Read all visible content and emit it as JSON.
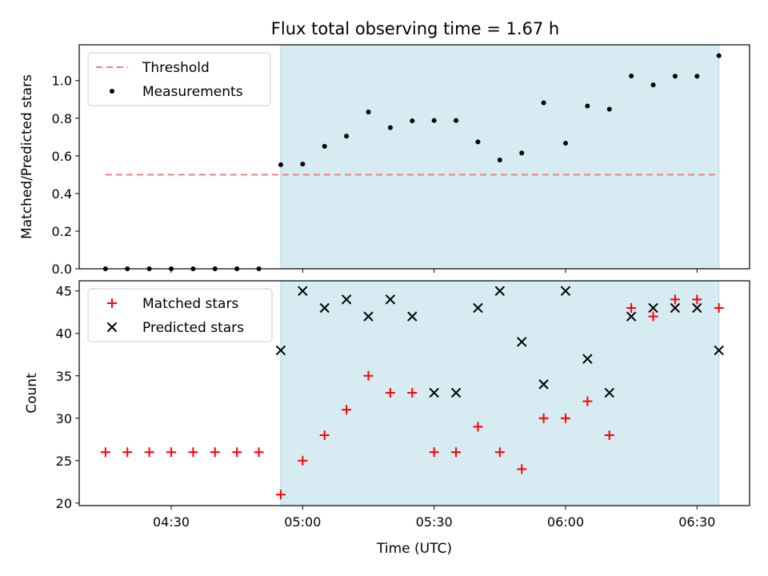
{
  "title": "Flux total observing time = 1.67 h",
  "colors": {
    "threshold": "#f08080",
    "measurement": "#000000",
    "matched": "#ff0000",
    "predicted": "#000000",
    "observing_span": "#add8e6"
  },
  "chart_data": [
    {
      "type": "scatter",
      "ylabel": "Matched/Predicted stars",
      "ylim": [
        0,
        1.19
      ],
      "yticks": [
        "0.0",
        "0.2",
        "0.4",
        "0.6",
        "0.8",
        "1.0"
      ],
      "legend": {
        "placement": "upper-left",
        "entries": [
          "Threshold",
          "Measurements"
        ]
      },
      "shaded_span": [
        "04:55",
        "06:35"
      ],
      "threshold": {
        "name": "Threshold",
        "value": 0.5,
        "x_range": [
          "04:15",
          "06:35"
        ],
        "style": "dashed"
      },
      "series": [
        {
          "name": "Measurements",
          "marker": "dot",
          "x": [
            "04:15",
            "04:20",
            "04:25",
            "04:30",
            "04:35",
            "04:40",
            "04:45",
            "04:50",
            "04:55",
            "05:00",
            "05:05",
            "05:10",
            "05:15",
            "05:20",
            "05:25",
            "05:30",
            "05:35",
            "05:40",
            "05:45",
            "05:50",
            "05:55",
            "06:00",
            "06:05",
            "06:10",
            "06:15",
            "06:20",
            "06:25",
            "06:30",
            "06:35"
          ],
          "y": [
            0,
            0,
            0,
            0,
            0,
            0,
            0,
            0,
            0.553,
            0.556,
            0.651,
            0.705,
            0.833,
            0.75,
            0.786,
            0.788,
            0.788,
            0.674,
            0.578,
            0.615,
            0.882,
            0.667,
            0.865,
            0.848,
            1.024,
            0.977,
            1.023,
            1.023,
            1.132
          ]
        }
      ]
    },
    {
      "type": "scatter",
      "xlabel": "Time (UTC)",
      "ylabel": "Count",
      "xlim": [
        "04:09",
        "06:42"
      ],
      "ylim": [
        19.7,
        46.2
      ],
      "xticks": [
        "04:30",
        "05:00",
        "05:30",
        "06:00",
        "06:30"
      ],
      "yticks": [
        "20",
        "25",
        "30",
        "35",
        "40",
        "45"
      ],
      "legend": {
        "placement": "upper-left",
        "entries": [
          "Matched stars",
          "Predicted stars"
        ]
      },
      "shaded_span": [
        "04:55",
        "06:35"
      ],
      "series": [
        {
          "name": "Matched stars",
          "marker": "plus",
          "x": [
            "04:15",
            "04:20",
            "04:25",
            "04:30",
            "04:35",
            "04:40",
            "04:45",
            "04:50",
            "04:55",
            "05:00",
            "05:05",
            "05:10",
            "05:15",
            "05:20",
            "05:25",
            "05:30",
            "05:35",
            "05:40",
            "05:45",
            "05:50",
            "05:55",
            "06:00",
            "06:05",
            "06:10",
            "06:15",
            "06:20",
            "06:25",
            "06:30",
            "06:35"
          ],
          "y": [
            26,
            26,
            26,
            26,
            26,
            26,
            26,
            26,
            21,
            25,
            28,
            31,
            35,
            33,
            33,
            26,
            26,
            29,
            26,
            24,
            30,
            30,
            32,
            28,
            43,
            42,
            44,
            44,
            43
          ]
        },
        {
          "name": "Predicted stars",
          "marker": "x",
          "x": [
            "04:55",
            "05:00",
            "05:05",
            "05:10",
            "05:15",
            "05:20",
            "05:25",
            "05:30",
            "05:35",
            "05:40",
            "05:45",
            "05:50",
            "05:55",
            "06:00",
            "06:05",
            "06:10",
            "06:15",
            "06:20",
            "06:25",
            "06:30",
            "06:35"
          ],
          "y": [
            38,
            45,
            43,
            44,
            42,
            44,
            42,
            33,
            33,
            43,
            45,
            39,
            34,
            45,
            37,
            33,
            42,
            43,
            43,
            43,
            38
          ]
        }
      ]
    }
  ]
}
